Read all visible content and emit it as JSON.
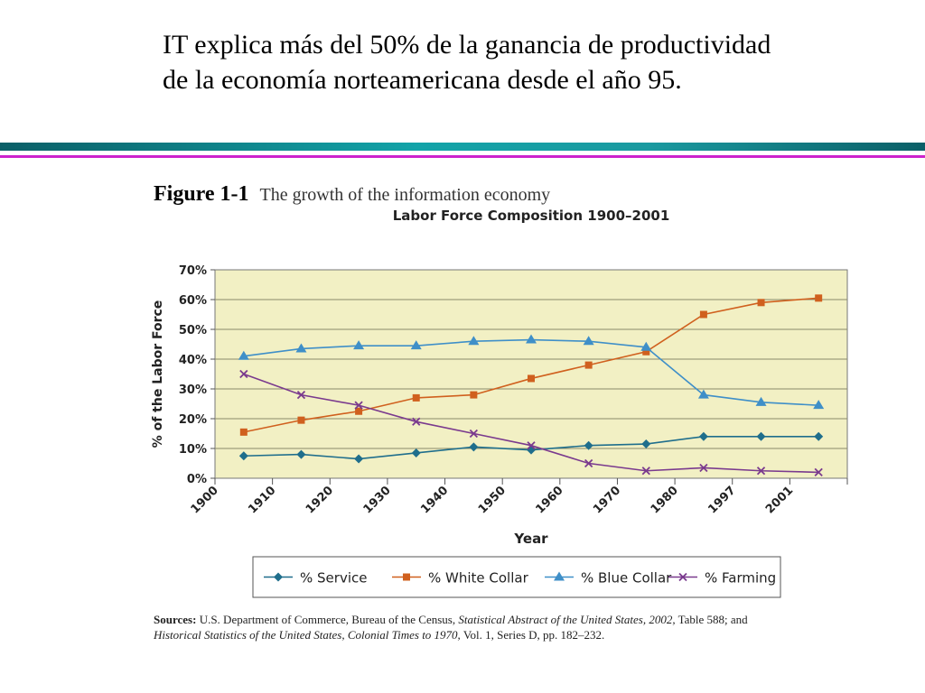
{
  "slide": {
    "title_line1": "IT explica más del 50% de la ganancia de productividad",
    "title_line2": "de la economía norteamericana desde el año 95."
  },
  "figure": {
    "number": "Figure 1-1",
    "caption": "The growth of the information economy"
  },
  "sources": {
    "label": "Sources:",
    "part1": "U.S. Department of Commerce, Bureau of the Census,",
    "italic1": "Statistical Abstract of the United States, 2002,",
    "part2": "Table 588; and",
    "italic2": "Historical Statistics of the United States, Colonial Times to 1970,",
    "part3": "Vol. 1, Series D, pp. 182–232."
  },
  "colors": {
    "plot_background": "#f2f0c4",
    "grid": "#8a8a6a",
    "service": "#1f6e8c",
    "white_collar": "#d0601e",
    "blue_collar": "#3f8fc8",
    "farming": "#7a3a8e"
  },
  "chart_data": {
    "type": "line",
    "title": "Labor Force Composition 1900–2001",
    "xlabel": "Year",
    "ylabel": "% of the Labor Force",
    "x_tick_labels": [
      "1900",
      "1910",
      "1920",
      "1930",
      "1940",
      "1950",
      "1960",
      "1970",
      "1980",
      "1997",
      "2001"
    ],
    "y_tick_labels": [
      "0%",
      "10%",
      "20%",
      "30%",
      "40%",
      "50%",
      "60%",
      "70%"
    ],
    "ylim": [
      0,
      70
    ],
    "grid": true,
    "legend_position": "bottom",
    "series": [
      {
        "name": "% Service",
        "marker": "diamond",
        "values": [
          7.5,
          8,
          6.5,
          8.5,
          10.5,
          9.5,
          11,
          11.5,
          14,
          14,
          14
        ]
      },
      {
        "name": "% White Collar",
        "marker": "square",
        "values": [
          15.5,
          19.5,
          22.5,
          27,
          28,
          33.5,
          38,
          42.5,
          55,
          59,
          60.5
        ]
      },
      {
        "name": "% Blue Collar",
        "marker": "triangle",
        "values": [
          41,
          43.5,
          44.5,
          44.5,
          46,
          46.5,
          46,
          44,
          28,
          25.5,
          24.5
        ]
      },
      {
        "name": "% Farming",
        "marker": "x",
        "values": [
          35,
          28,
          24.5,
          19,
          15,
          11,
          5,
          2.5,
          3.5,
          2.5,
          2
        ]
      }
    ]
  }
}
